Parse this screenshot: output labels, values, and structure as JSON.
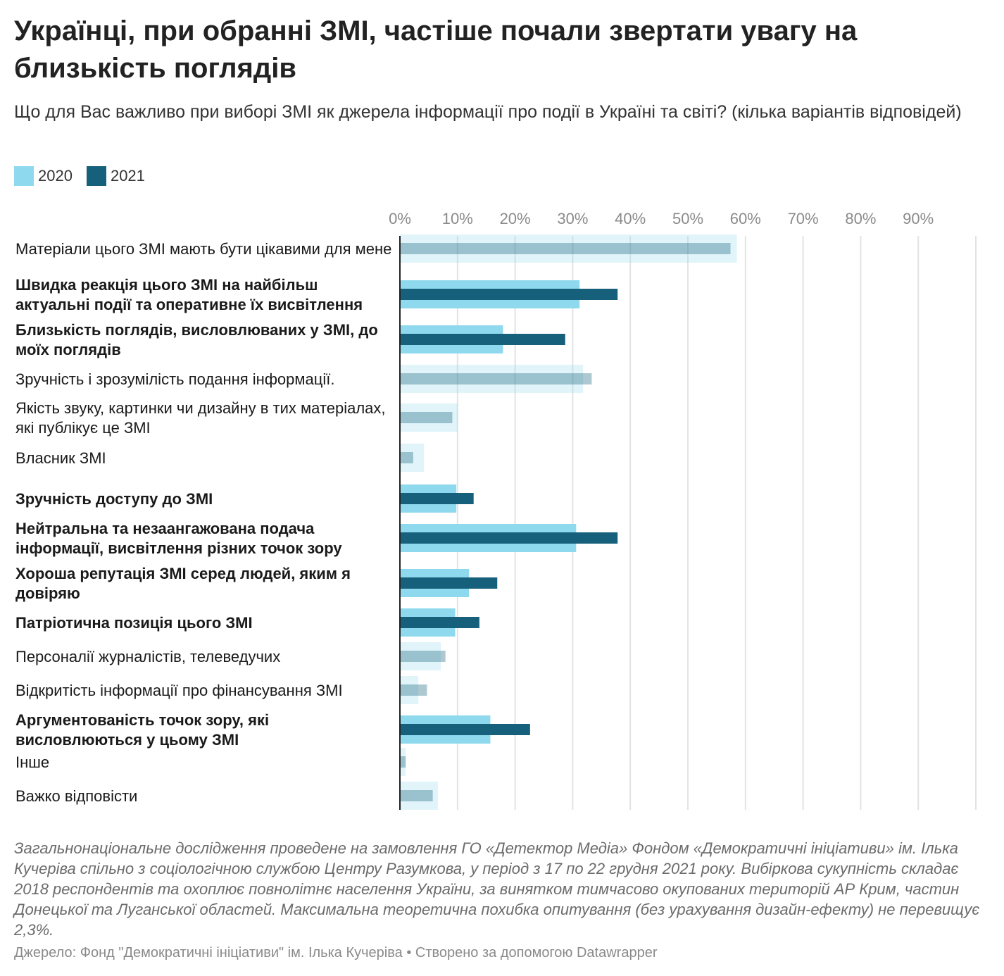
{
  "title": "Українці, при обранні ЗМІ, частіше почали звертати увагу на близькість поглядів",
  "subtitle": "Що для Вас важливо при виборі ЗМІ як джерела інформації про події в Україні та світі? (кілька варіантів відповідей)",
  "legend": [
    {
      "label": "2020",
      "color": "#8fd9ee"
    },
    {
      "label": "2021",
      "color": "#17607c"
    }
  ],
  "chart_data": {
    "type": "bar",
    "orientation": "horizontal",
    "categories": [
      "Матеріали цього ЗМІ мають бути цікавими для мене",
      "Швидка реакція цього ЗМІ на найбільш актуальні події та оперативне їх висвітлення",
      "Близькість поглядів, висловлюваних у ЗМІ, до моїх поглядів",
      "Зручність і зрозумілість подання інформації.",
      "Якість звуку, картинки чи дизайну в тих матеріалах, які публікує це ЗМІ",
      "Власник ЗМІ",
      "Зручність доступу до ЗМІ",
      "Нейтральна та незаангажована подача інформації, висвітлення різних точок зору",
      "Хороша репутація ЗМІ серед людей, яким я довіряю",
      "Патріотична позиція цього ЗМІ",
      "Персоналії журналістів, телеведучих",
      "Відкритість інформації про фінансування ЗМІ",
      "Аргументованість точок зору, які висловлюються у цьому ЗМІ",
      "Інше",
      "Важко відповісти"
    ],
    "highlighted": [
      false,
      true,
      true,
      false,
      false,
      false,
      true,
      true,
      true,
      true,
      false,
      false,
      true,
      false,
      false
    ],
    "series": [
      {
        "name": "2020",
        "values": [
          58.5,
          31.2,
          17.9,
          31.8,
          10.0,
          4.2,
          9.8,
          30.6,
          12.0,
          9.6,
          7.1,
          3.2,
          15.7,
          1.0,
          6.6
        ]
      },
      {
        "name": "2021",
        "values": [
          57.4,
          37.8,
          28.7,
          33.3,
          9.1,
          2.3,
          12.8,
          37.8,
          16.9,
          13.8,
          7.9,
          4.7,
          22.6,
          1.0,
          5.7
        ]
      }
    ],
    "x_ticks": [
      "0%",
      "10%",
      "20%",
      "30%",
      "40%",
      "50%",
      "60%",
      "70%",
      "80%",
      "90%"
    ],
    "xlim": [
      0,
      100
    ],
    "grid": true
  },
  "notes": "Загальнонаціональне дослідження проведене на замовлення ГО «Детектор Медіа» Фондом «Демократичні ініціативи» ім. Ілька Кучеріва спільно з соціологічною службою Центру Разумкова, у період з 17 по 22 грудня 2021 року. Вибіркова сукупність складає 2018 респондентів та охоплює повнолітнє населення України, за винятком тимчасово окупованих територій АР Крим, частин Донецької та Луганської областей. Максимальна теоретична похибка опитування (без урахування дизайн-ефекту) не перевищує 2,3%.",
  "source": "Джерело: Фонд \"Демократичні ініціативи\" ім. Ілька Кучеріва • Створено за допомогою Datawrapper"
}
